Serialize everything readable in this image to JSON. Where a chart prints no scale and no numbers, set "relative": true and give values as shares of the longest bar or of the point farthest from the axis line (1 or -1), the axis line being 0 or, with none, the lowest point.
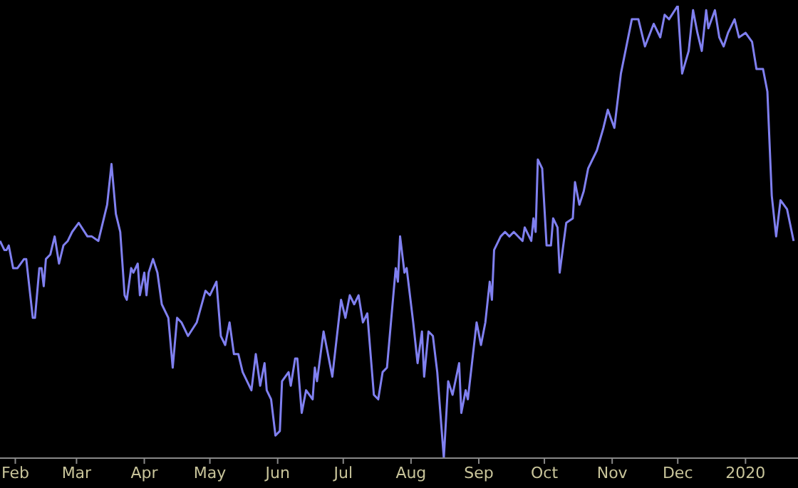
{
  "chart_data": {
    "type": "line",
    "relative": true,
    "grid": false,
    "legend": false,
    "marker": "none",
    "line_style": "solid",
    "xlim": [
      "2019-01-25",
      "2020-01-25"
    ],
    "xticks": [
      {
        "value": "2019-02-01",
        "label": "Feb"
      },
      {
        "value": "2019-03-01",
        "label": "Mar"
      },
      {
        "value": "2019-04-01",
        "label": "Apr"
      },
      {
        "value": "2019-05-01",
        "label": "May"
      },
      {
        "value": "2019-06-01",
        "label": "Jun"
      },
      {
        "value": "2019-07-01",
        "label": "Jul"
      },
      {
        "value": "2019-08-01",
        "label": "Aug"
      },
      {
        "value": "2019-09-01",
        "label": "Sep"
      },
      {
        "value": "2019-10-01",
        "label": "Oct"
      },
      {
        "value": "2019-11-01",
        "label": "Nov"
      },
      {
        "value": "2019-12-01",
        "label": "Dec"
      },
      {
        "value": "2020-01-01",
        "label": "2020"
      }
    ],
    "x": [
      "2019-01-25",
      "2019-01-27",
      "2019-01-28",
      "2019-01-29",
      "2019-01-31",
      "2019-02-02",
      "2019-02-05",
      "2019-02-06",
      "2019-02-09",
      "2019-02-10",
      "2019-02-12",
      "2019-02-13",
      "2019-02-14",
      "2019-02-15",
      "2019-02-17",
      "2019-02-19",
      "2019-02-21",
      "2019-02-23",
      "2019-02-25",
      "2019-02-27",
      "2019-03-02",
      "2019-03-06",
      "2019-03-08",
      "2019-03-11",
      "2019-03-15",
      "2019-03-17",
      "2019-03-19",
      "2019-03-21",
      "2019-03-23",
      "2019-03-24",
      "2019-03-26",
      "2019-03-27",
      "2019-03-29",
      "2019-03-30",
      "2019-04-01",
      "2019-04-02",
      "2019-04-03",
      "2019-04-05",
      "2019-04-07",
      "2019-04-09",
      "2019-04-12",
      "2019-04-14",
      "2019-04-16",
      "2019-04-18",
      "2019-04-21",
      "2019-04-25",
      "2019-04-29",
      "2019-05-01",
      "2019-05-04",
      "2019-05-06",
      "2019-05-08",
      "2019-05-10",
      "2019-05-12",
      "2019-05-14",
      "2019-05-16",
      "2019-05-20",
      "2019-05-22",
      "2019-05-24",
      "2019-05-26",
      "2019-05-27",
      "2019-05-29",
      "2019-05-31",
      "2019-06-02",
      "2019-06-03",
      "2019-06-06",
      "2019-06-07",
      "2019-06-09",
      "2019-06-10",
      "2019-06-12",
      "2019-06-14",
      "2019-06-17",
      "2019-06-18",
      "2019-06-19",
      "2019-06-22",
      "2019-06-24",
      "2019-06-26",
      "2019-06-30",
      "2019-07-02",
      "2019-07-04",
      "2019-07-06",
      "2019-07-08",
      "2019-07-10",
      "2019-07-12",
      "2019-07-15",
      "2019-07-17",
      "2019-07-19",
      "2019-07-21",
      "2019-07-25",
      "2019-07-26",
      "2019-07-27",
      "2019-07-29",
      "2019-07-30",
      "2019-08-02",
      "2019-08-04",
      "2019-08-06",
      "2019-08-07",
      "2019-08-09",
      "2019-08-11",
      "2019-08-13",
      "2019-08-16",
      "2019-08-18",
      "2019-08-20",
      "2019-08-23",
      "2019-08-24",
      "2019-08-26",
      "2019-08-27",
      "2019-08-31",
      "2019-09-02",
      "2019-09-04",
      "2019-09-06",
      "2019-09-07",
      "2019-09-08",
      "2019-09-11",
      "2019-09-13",
      "2019-09-15",
      "2019-09-17",
      "2019-09-21",
      "2019-09-22",
      "2019-09-25",
      "2019-09-26",
      "2019-09-27",
      "2019-09-28",
      "2019-09-30",
      "2019-10-02",
      "2019-10-04",
      "2019-10-05",
      "2019-10-07",
      "2019-10-08",
      "2019-10-11",
      "2019-10-14",
      "2019-10-15",
      "2019-10-17",
      "2019-10-19",
      "2019-10-21",
      "2019-10-25",
      "2019-10-28",
      "2019-10-30",
      "2019-11-02",
      "2019-11-05",
      "2019-11-10",
      "2019-11-13",
      "2019-11-16",
      "2019-11-20",
      "2019-11-23",
      "2019-11-25",
      "2019-11-27",
      "2019-12-01",
      "2019-12-03",
      "2019-12-06",
      "2019-12-08",
      "2019-12-10",
      "2019-12-12",
      "2019-12-14",
      "2019-12-15",
      "2019-12-18",
      "2019-12-20",
      "2019-12-22",
      "2019-12-24",
      "2019-12-27",
      "2019-12-29",
      "2020-01-01",
      "2020-01-04",
      "2020-01-06",
      "2020-01-09",
      "2020-01-11",
      "2020-01-13",
      "2020-01-15",
      "2020-01-17",
      "2020-01-20",
      "2020-01-23"
    ],
    "series": [
      {
        "color": "#8080f0",
        "values": [
          0.48,
          0.46,
          0.46,
          0.47,
          0.42,
          0.42,
          0.44,
          0.44,
          0.31,
          0.31,
          0.42,
          0.42,
          0.38,
          0.44,
          0.45,
          0.49,
          0.43,
          0.47,
          0.48,
          0.5,
          0.52,
          0.49,
          0.49,
          0.48,
          0.56,
          0.65,
          0.54,
          0.5,
          0.36,
          0.35,
          0.42,
          0.41,
          0.43,
          0.36,
          0.41,
          0.36,
          0.41,
          0.44,
          0.41,
          0.34,
          0.31,
          0.2,
          0.31,
          0.3,
          0.27,
          0.3,
          0.37,
          0.36,
          0.39,
          0.27,
          0.25,
          0.3,
          0.23,
          0.23,
          0.19,
          0.15,
          0.23,
          0.16,
          0.21,
          0.15,
          0.13,
          0.05,
          0.06,
          0.17,
          0.19,
          0.16,
          0.22,
          0.22,
          0.1,
          0.15,
          0.13,
          0.2,
          0.17,
          0.28,
          0.23,
          0.18,
          0.35,
          0.31,
          0.36,
          0.34,
          0.36,
          0.3,
          0.32,
          0.14,
          0.13,
          0.19,
          0.2,
          0.42,
          0.39,
          0.49,
          0.41,
          0.42,
          0.3,
          0.21,
          0.28,
          0.18,
          0.28,
          0.27,
          0.19,
          0,
          0.17,
          0.14,
          0.21,
          0.1,
          0.15,
          0.13,
          0.3,
          0.25,
          0.3,
          0.39,
          0.35,
          0.46,
          0.49,
          0.5,
          0.49,
          0.5,
          0.48,
          0.51,
          0.48,
          0.53,
          0.5,
          0.66,
          0.64,
          0.47,
          0.47,
          0.53,
          0.51,
          0.41,
          0.52,
          0.53,
          0.61,
          0.56,
          0.59,
          0.64,
          0.68,
          0.73,
          0.77,
          0.73,
          0.85,
          0.97,
          0.97,
          0.91,
          0.96,
          0.93,
          0.98,
          0.97,
          1,
          0.85,
          0.9,
          0.99,
          0.94,
          0.9,
          0.99,
          0.95,
          0.99,
          0.93,
          0.91,
          0.94,
          0.97,
          0.93,
          0.94,
          0.92,
          0.86,
          0.86,
          0.81,
          0.58,
          0.49,
          0.57,
          0.55,
          0.48
        ]
      }
    ]
  }
}
